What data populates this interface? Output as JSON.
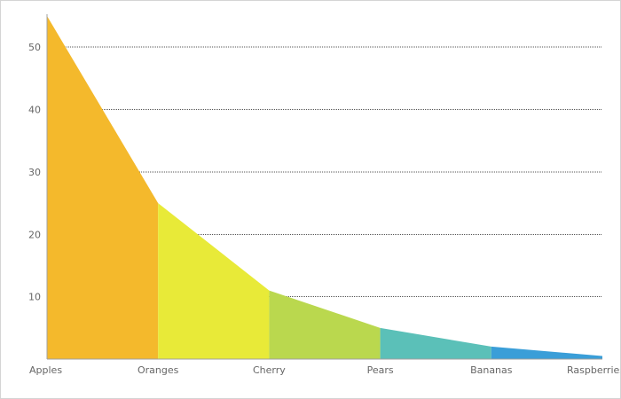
{
  "chart_data": {
    "type": "area",
    "categories": [
      "Apples",
      "Oranges",
      "Cherry",
      "Pears",
      "Bananas",
      "Raspberries"
    ],
    "values": [
      55,
      25,
      11,
      5,
      2,
      0.5
    ],
    "segment_colors": [
      "#f4b92c",
      "#e8ea38",
      "#bad84e",
      "#5bc0b8",
      "#3a9ed8"
    ],
    "ylim": [
      0,
      55
    ],
    "yticks": [
      10,
      20,
      30,
      40,
      50
    ],
    "grid": true,
    "title": "",
    "xlabel": "",
    "ylabel": ""
  }
}
